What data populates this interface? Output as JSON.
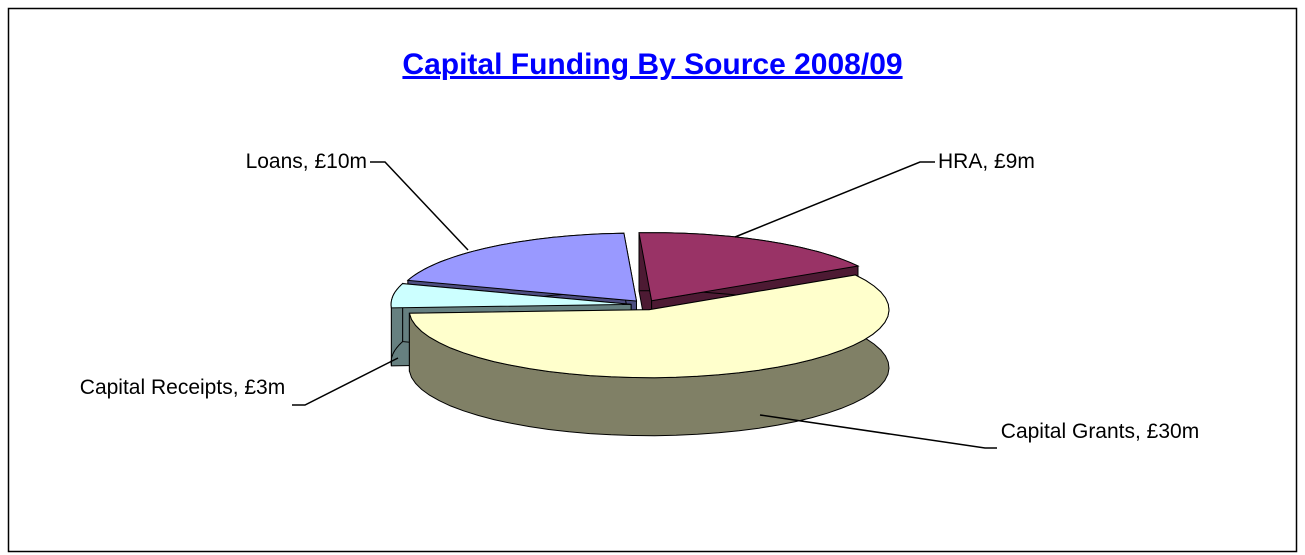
{
  "chart_data": {
    "type": "pie",
    "title": "Capital Funding By Source 2008/09",
    "values": [
      9,
      30,
      3,
      10
    ],
    "value_labels": [
      "HRA, £9m",
      "Capital Grants, £30m",
      "Capital Receipts, £3m",
      "Loans, £10m"
    ],
    "colors": [
      "#993366",
      "#ffffcc",
      "#ccffff",
      "#9999ff"
    ]
  }
}
